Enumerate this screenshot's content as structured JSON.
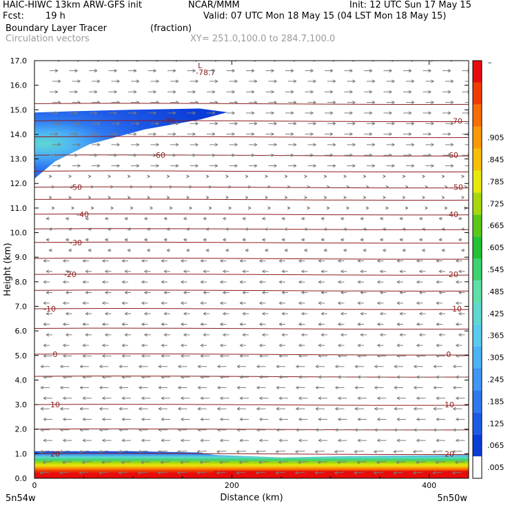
{
  "header": {
    "title_left": "HAIC-HIWC 13km ARW-GFS init",
    "org": "NCAR/MMM",
    "init": "Init: 12 UTC Sun 17 May 15",
    "fcst_label": "Fcst:",
    "fcst_value": "19 h",
    "valid": "Valid: 07 UTC Mon 18 May 15 (04 LST Mon 18 May 15)",
    "field1": "Boundary Layer Tracer",
    "field1_units": "(fraction)",
    "field2": "Circulation vectors",
    "xy": "XY= 251.0,100.0 to 284.7,100.0"
  },
  "chart_data": {
    "type": "heatmap",
    "xlabel": "Distance (km)",
    "ylabel": "Height (km)",
    "xlim": [
      0,
      440
    ],
    "ylim": [
      0,
      17
    ],
    "x_ticks": [
      0,
      200,
      400
    ],
    "y_ticks": [
      "0.0",
      "1.0",
      "2.0",
      "3.0",
      "4.0",
      "5.0",
      "6.0",
      "7.0",
      "8.0",
      "9.0",
      "10.0",
      "11.0",
      "12.0",
      "13.0",
      "14.0",
      "15.0",
      "16.0",
      "17.0"
    ],
    "x_end_labels": {
      "left": "5n54w",
      "right": "5n50w"
    },
    "colorbar": {
      "labels": [
        ".005",
        ".065",
        ".125",
        ".185",
        ".245",
        ".305",
        ".365",
        ".425",
        ".485",
        ".545",
        ".605",
        ".665",
        ".725",
        ".785",
        ".845",
        ".905"
      ],
      "top_label": "–",
      "colors": [
        "#ffffff",
        "#0a3cd8",
        "#1e5ae8",
        "#2e78f0",
        "#3f96f5",
        "#4cb4f5",
        "#57ccee",
        "#5fd8d0",
        "#5ee0a8",
        "#3ed26e",
        "#22c234",
        "#5cc818",
        "#a8d80c",
        "#e8e80a",
        "#f6c008",
        "#f89a06",
        "#f86e04",
        "#f03c02",
        "#e80c0c"
      ]
    },
    "isotherms": [
      {
        "label": "-78.7",
        "height": 16.9
      },
      {
        "label": "-70",
        "height": 14.55
      },
      {
        "label": "-60",
        "height": 13.15
      },
      {
        "label": "-50",
        "height": 11.85
      },
      {
        "label": "-40",
        "height": 10.75
      },
      {
        "label": "-30",
        "height": 9.6
      },
      {
        "label": "-20",
        "height": 8.3
      },
      {
        "label": "-10",
        "height": 6.9
      },
      {
        "label": "0",
        "height": 5.05
      },
      {
        "label": "10",
        "height": 3.0
      },
      {
        "label": "20",
        "height": 1.0
      }
    ],
    "contour_line_heights": [
      15.25,
      14.55,
      13.9,
      13.15,
      12.5,
      11.85,
      11.35,
      10.75,
      10.15,
      9.6,
      8.95,
      8.3,
      7.65,
      6.9,
      6.1,
      5.05,
      4.15,
      3.0,
      2.0,
      1.0
    ],
    "low_marker": {
      "label": "L",
      "value": "-78.7",
      "x": 165,
      "height": 16.75
    },
    "tracer_regions": [
      {
        "name": "upper_plume",
        "max_fraction": 0.3,
        "x_range": [
          0,
          200
        ],
        "height_range": [
          12.2,
          15.0
        ]
      },
      {
        "name": "boundary_layer",
        "max_fraction": 1.0,
        "x_range": [
          0,
          440
        ],
        "height_range": [
          0.0,
          1.1
        ]
      }
    ]
  }
}
